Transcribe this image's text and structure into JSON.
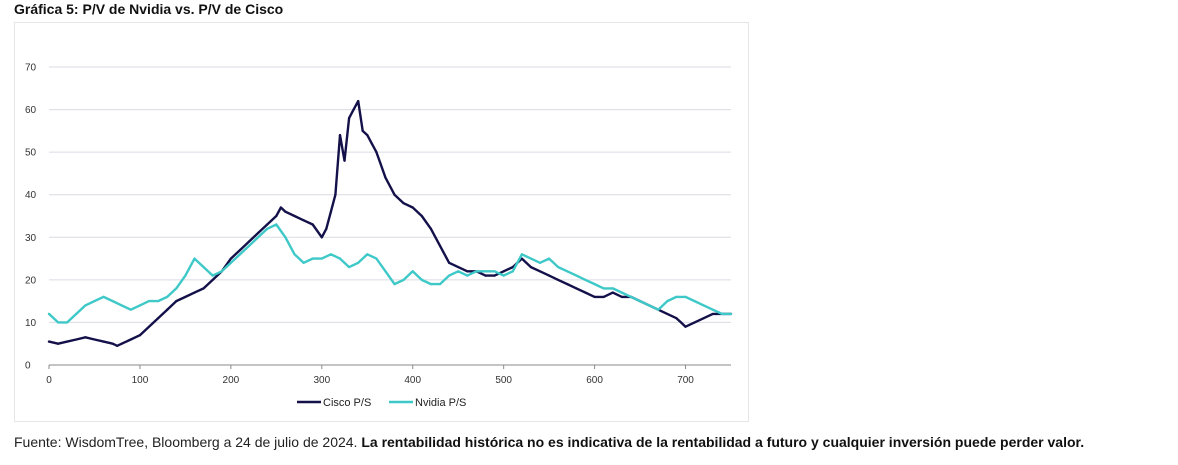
{
  "title": "Gráfica 5: P/V de Nvidia vs. P/V de Cisco",
  "source_text": "Fuente: WisdomTree, Bloomberg a 24 de julio de 2024.",
  "disclaimer": "La rentabilidad histórica no es indicativa de la rentabilidad a futuro y cualquier inversión puede perder valor.",
  "colors": {
    "cisco": "#14114a",
    "nvidia": "#3fc8c8",
    "grid": "#d9dbe3",
    "axis": "#333333"
  },
  "chart_data": {
    "type": "line",
    "title": "",
    "xlabel": "",
    "ylabel": "",
    "xlim": [
      0,
      750
    ],
    "ylim": [
      0,
      70
    ],
    "x_ticks": [
      0,
      100,
      200,
      300,
      400,
      500,
      600,
      700
    ],
    "y_ticks": [
      0,
      10,
      20,
      30,
      40,
      50,
      60,
      70
    ],
    "grid": "horizontal",
    "legend": "bottom-center",
    "series": [
      {
        "name": "Cisco P/S",
        "x": [
          0,
          10,
          20,
          30,
          40,
          50,
          60,
          70,
          75,
          80,
          90,
          100,
          110,
          120,
          130,
          140,
          150,
          160,
          170,
          180,
          190,
          200,
          210,
          220,
          230,
          240,
          250,
          255,
          260,
          270,
          280,
          290,
          300,
          305,
          310,
          315,
          320,
          325,
          330,
          335,
          340,
          345,
          350,
          355,
          360,
          370,
          380,
          390,
          400,
          410,
          420,
          430,
          440,
          450,
          460,
          470,
          480,
          490,
          500,
          510,
          520,
          530,
          540,
          550,
          560,
          570,
          580,
          590,
          600,
          610,
          620,
          630,
          640,
          650,
          660,
          670,
          680,
          690,
          695,
          700,
          710,
          720,
          730,
          740,
          750
        ],
        "values": [
          5.5,
          5,
          5.5,
          6,
          6.5,
          6,
          5.5,
          5,
          4.5,
          5,
          6,
          7,
          9,
          11,
          13,
          15,
          16,
          17,
          18,
          20,
          22,
          25,
          27,
          29,
          31,
          33,
          35,
          37,
          36,
          35,
          34,
          33,
          30,
          32,
          36,
          40,
          54,
          48,
          58,
          60,
          62,
          55,
          54,
          52,
          50,
          44,
          40,
          38,
          37,
          35,
          32,
          28,
          24,
          23,
          22,
          22,
          21,
          21,
          22,
          23,
          25,
          23,
          22,
          21,
          20,
          19,
          18,
          17,
          16,
          16,
          17,
          16,
          16,
          15,
          14,
          13,
          12,
          11,
          10,
          9,
          10,
          11,
          12,
          12,
          12
        ]
      },
      {
        "name": "Nvidia P/S",
        "x": [
          0,
          10,
          20,
          30,
          40,
          50,
          60,
          70,
          80,
          90,
          100,
          110,
          120,
          130,
          140,
          150,
          160,
          170,
          180,
          190,
          200,
          210,
          220,
          230,
          240,
          250,
          260,
          270,
          280,
          290,
          300,
          310,
          320,
          330,
          340,
          350,
          360,
          370,
          380,
          390,
          400,
          410,
          420,
          430,
          440,
          450,
          460,
          470,
          480,
          490,
          500,
          510,
          520,
          530,
          540,
          550,
          560,
          570,
          580,
          590,
          600,
          610,
          620,
          630,
          640,
          650,
          660,
          670,
          680,
          690,
          700,
          710,
          720,
          730,
          740,
          750
        ],
        "values": [
          12,
          10,
          10,
          12,
          14,
          15,
          16,
          15,
          14,
          13,
          14,
          15,
          15,
          16,
          18,
          21,
          25,
          23,
          21,
          22,
          24,
          26,
          28,
          30,
          32,
          33,
          30,
          26,
          24,
          25,
          25,
          26,
          25,
          23,
          24,
          26,
          25,
          22,
          19,
          20,
          22,
          20,
          19,
          19,
          21,
          22,
          21,
          22,
          22,
          22,
          21,
          22,
          26,
          25,
          24,
          25,
          23,
          22,
          21,
          20,
          19,
          18,
          18,
          17,
          16,
          15,
          14,
          13,
          15,
          16,
          16,
          15,
          14,
          13,
          12,
          12
        ]
      }
    ]
  }
}
